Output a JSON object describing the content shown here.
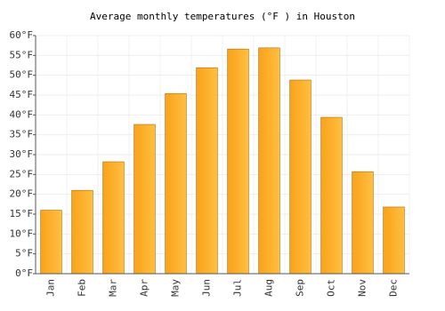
{
  "chart_data": {
    "type": "bar",
    "title": "Average monthly temperatures (°F ) in Houston",
    "categories": [
      "Jan",
      "Feb",
      "Mar",
      "Apr",
      "May",
      "Jun",
      "Jul",
      "Aug",
      "Sep",
      "Oct",
      "Nov",
      "Dec"
    ],
    "values": [
      16,
      21,
      28.2,
      37.6,
      45.4,
      51.9,
      56.6,
      56.9,
      48.8,
      39.4,
      25.7,
      16.8
    ],
    "color": "#f9a21b",
    "ylim": [
      0,
      60
    ],
    "yticks": [
      {
        "value": 0,
        "label": "0°F"
      },
      {
        "value": 5,
        "label": "5°F"
      },
      {
        "value": 10,
        "label": "10°F"
      },
      {
        "value": 15,
        "label": "15°F"
      },
      {
        "value": 20,
        "label": "20°F"
      },
      {
        "value": 25,
        "label": "25°F"
      },
      {
        "value": 30,
        "label": "30°F"
      },
      {
        "value": 35,
        "label": "35°F"
      },
      {
        "value": 40,
        "label": "40°F"
      },
      {
        "value": 45,
        "label": "45°F"
      },
      {
        "value": 50,
        "label": "50°F"
      },
      {
        "value": 55,
        "label": "55°F"
      },
      {
        "value": 60,
        "label": "60°F"
      }
    ],
    "grid": true
  }
}
